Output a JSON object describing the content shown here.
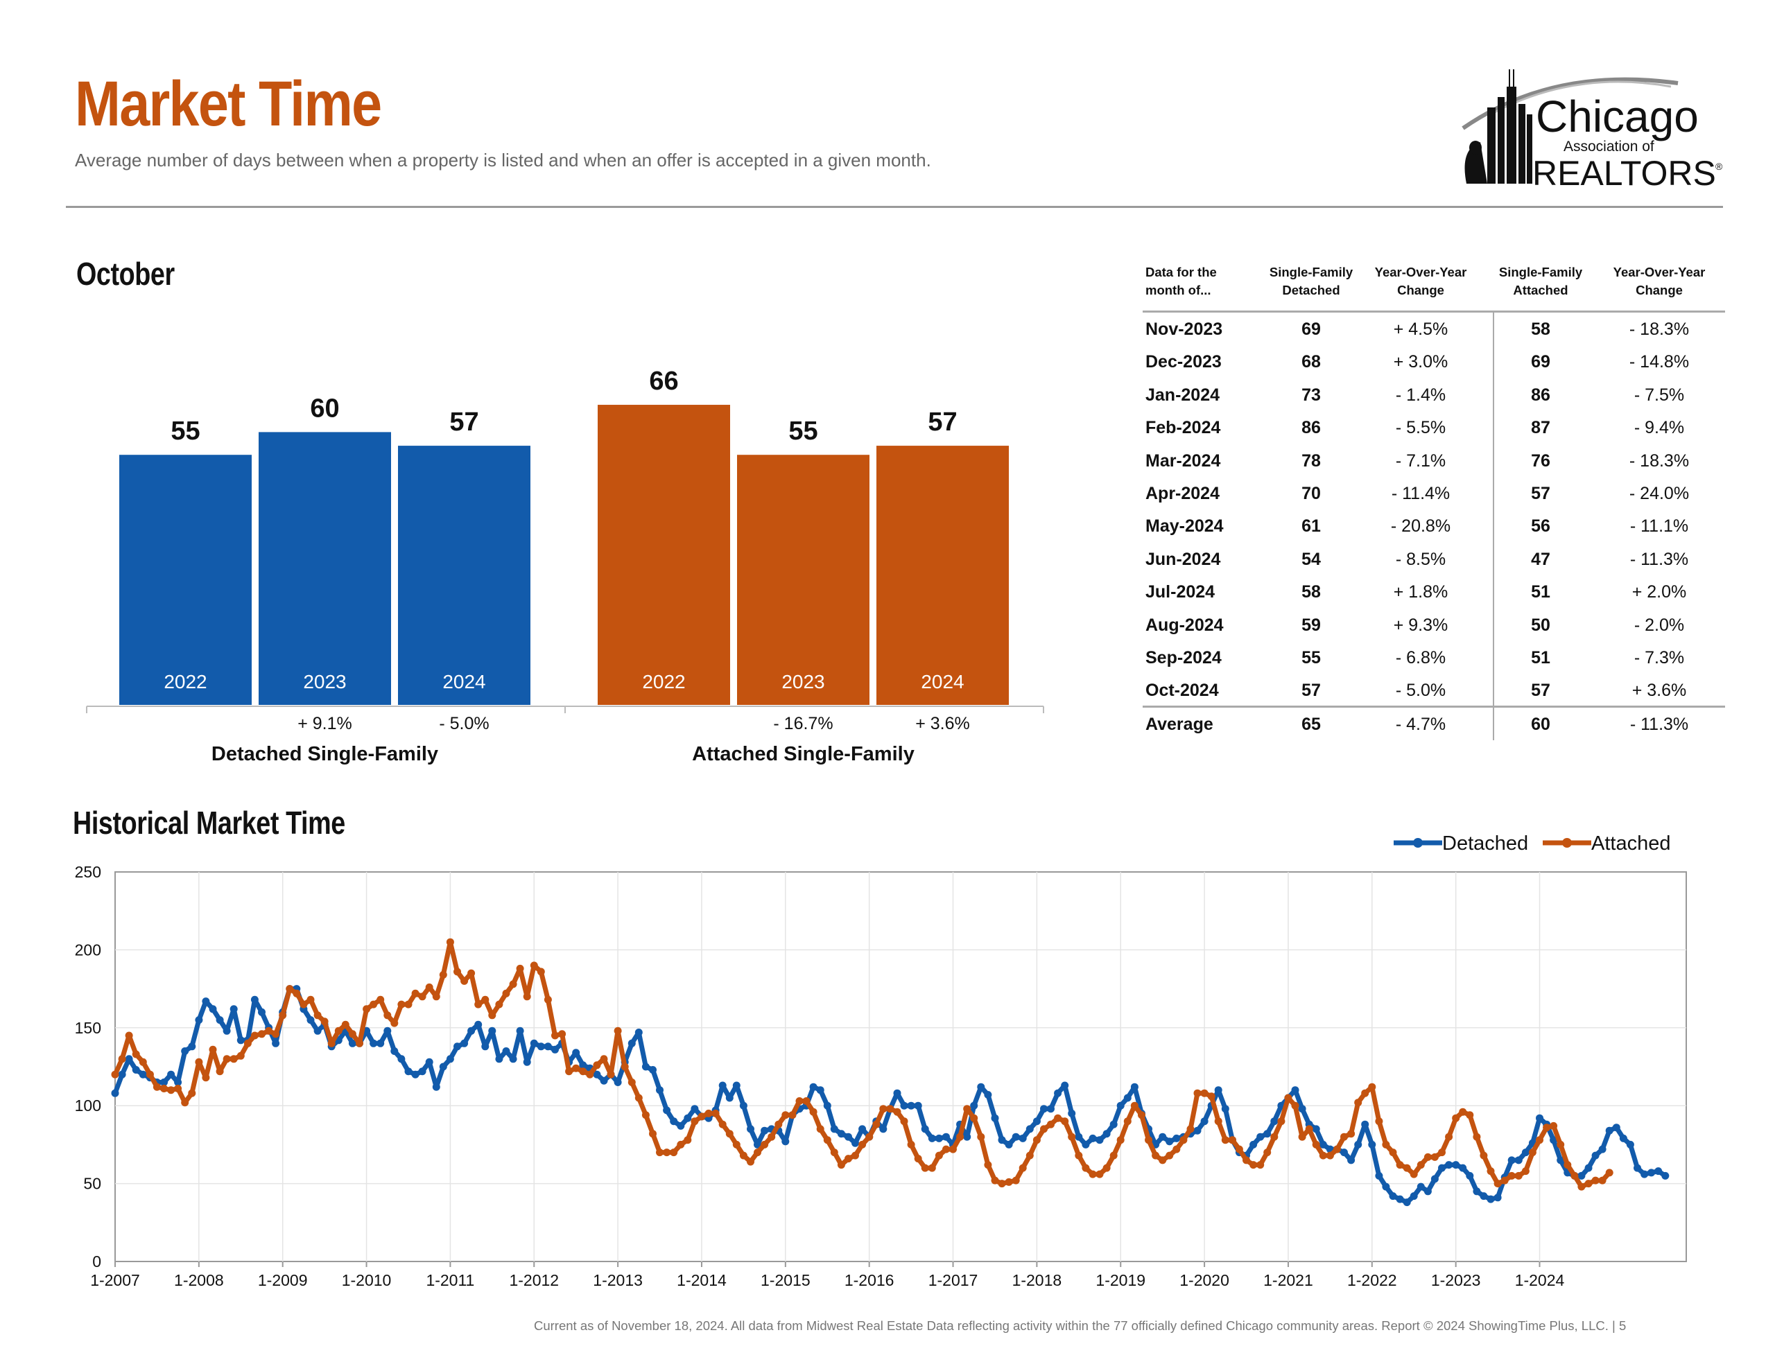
{
  "header": {
    "title": "Market Time",
    "subtitle": "Average number of days between when a property is listed and when an offer is accepted in a given month.",
    "logo": {
      "line1": "Chicago",
      "line2": "Association of",
      "line3": "REALTORS",
      "mark": "®"
    }
  },
  "october": {
    "title": "October"
  },
  "table": {
    "headers": [
      "Data for the month of...",
      "Single-Family Detached",
      "Year-Over-Year Change",
      "Single-Family Attached",
      "Year-Over-Year Change"
    ],
    "header_lines": [
      [
        "Data for the",
        "month of..."
      ],
      [
        "Single-Family",
        "Detached"
      ],
      [
        "Year-Over-Year",
        "Change"
      ],
      [
        "Single-Family",
        "Attached"
      ],
      [
        "Year-Over-Year",
        "Change"
      ]
    ],
    "rows": [
      [
        "Nov-2023",
        "69",
        "+ 4.5%",
        "58",
        "- 18.3%"
      ],
      [
        "Dec-2023",
        "68",
        "+ 3.0%",
        "69",
        "- 14.8%"
      ],
      [
        "Jan-2024",
        "73",
        "- 1.4%",
        "86",
        "- 7.5%"
      ],
      [
        "Feb-2024",
        "86",
        "- 5.5%",
        "87",
        "- 9.4%"
      ],
      [
        "Mar-2024",
        "78",
        "- 7.1%",
        "76",
        "- 18.3%"
      ],
      [
        "Apr-2024",
        "70",
        "- 11.4%",
        "57",
        "- 24.0%"
      ],
      [
        "May-2024",
        "61",
        "- 20.8%",
        "56",
        "- 11.1%"
      ],
      [
        "Jun-2024",
        "54",
        "- 8.5%",
        "47",
        "- 11.3%"
      ],
      [
        "Jul-2024",
        "58",
        "+ 1.8%",
        "51",
        "+ 2.0%"
      ],
      [
        "Aug-2024",
        "59",
        "+ 9.3%",
        "50",
        "- 2.0%"
      ],
      [
        "Sep-2024",
        "55",
        "- 6.8%",
        "51",
        "- 7.3%"
      ],
      [
        "Oct-2024",
        "57",
        "- 5.0%",
        "57",
        "+ 3.6%"
      ]
    ],
    "average": [
      "Average",
      "65",
      "- 4.7%",
      "60",
      "- 11.3%"
    ]
  },
  "historical": {
    "title": "Historical Market Time"
  },
  "footer": "Current as of November 18, 2024.  All data from Midwest Real Estate Data reflecting activity within the 77 officially defined Chicago community areas. Report © 2024 ShowingTime Plus, LLC.  |  5",
  "colors": {
    "detached": "#125bab",
    "attached": "#c4530f",
    "title": "#c4530f"
  },
  "chart_data": [
    {
      "type": "bar",
      "title": "October",
      "groups": [
        {
          "name": "Detached Single-Family",
          "color": "#125bab",
          "categories": [
            "2022",
            "2023",
            "2024"
          ],
          "values": [
            55,
            60,
            57
          ],
          "changes": [
            "",
            "+ 9.1%",
            "- 5.0%"
          ]
        },
        {
          "name": "Attached Single-Family",
          "color": "#c4530f",
          "categories": [
            "2022",
            "2023",
            "2024"
          ],
          "values": [
            66,
            55,
            57
          ],
          "changes": [
            "",
            "- 16.7%",
            "+ 3.6%"
          ]
        }
      ],
      "ylim": [
        0,
        75
      ]
    },
    {
      "type": "line",
      "title": "Historical Market Time",
      "x_start": "1-2007",
      "x_tick_labels": [
        "1-2007",
        "1-2008",
        "1-2009",
        "1-2010",
        "1-2011",
        "1-2012",
        "1-2013",
        "1-2014",
        "1-2015",
        "1-2016",
        "1-2017",
        "1-2018",
        "1-2019",
        "1-2020",
        "1-2021",
        "1-2022",
        "1-2023",
        "1-2024"
      ],
      "y_ticks": [
        0,
        50,
        100,
        150,
        200,
        250
      ],
      "ylim": [
        0,
        250
      ],
      "legend": "top-right",
      "grid": true,
      "series": [
        {
          "name": "Detached",
          "color": "#125bab",
          "values": [
            108,
            120,
            130,
            123,
            120,
            118,
            115,
            115,
            120,
            115,
            135,
            138,
            155,
            167,
            162,
            155,
            148,
            162,
            142,
            142,
            168,
            160,
            150,
            140,
            160,
            175,
            175,
            162,
            155,
            148,
            152,
            138,
            142,
            148,
            140,
            140,
            148,
            140,
            140,
            148,
            135,
            130,
            122,
            120,
            122,
            128,
            112,
            125,
            130,
            138,
            140,
            148,
            152,
            138,
            148,
            130,
            135,
            130,
            148,
            128,
            140,
            138,
            138,
            136,
            140,
            128,
            134,
            126,
            124,
            120,
            116,
            120,
            115,
            128,
            140,
            147,
            125,
            123,
            110,
            97,
            90,
            87,
            92,
            98,
            93,
            92,
            97,
            113,
            105,
            113,
            100,
            85,
            75,
            84,
            85,
            84,
            77,
            94,
            98,
            100,
            112,
            110,
            100,
            85,
            82,
            80,
            76,
            85,
            80,
            90,
            85,
            98,
            108,
            100,
            100,
            100,
            85,
            79,
            79,
            80,
            75,
            88,
            80,
            100,
            112,
            107,
            92,
            78,
            75,
            80,
            79,
            85,
            90,
            98,
            98,
            108,
            113,
            95,
            80,
            75,
            79,
            78,
            82,
            88,
            100,
            105,
            112,
            95,
            85,
            75,
            80,
            77,
            79,
            80,
            82,
            84,
            90,
            100,
            110,
            98,
            78,
            70,
            68,
            75,
            80,
            82,
            90,
            100,
            105,
            110,
            98,
            88,
            85,
            75,
            72,
            72,
            70,
            65,
            75,
            88,
            75,
            55,
            48,
            42,
            40,
            38,
            42,
            48,
            45,
            53,
            60,
            62,
            62,
            60,
            55,
            45,
            42,
            40,
            41,
            54,
            65,
            65,
            70,
            76,
            92,
            88,
            78,
            65,
            57,
            55,
            55,
            60,
            68,
            72,
            84,
            86,
            79,
            75,
            60,
            56,
            57,
            58,
            55
          ]
        },
        {
          "name": "Attached",
          "color": "#c4530f",
          "values": [
            120,
            130,
            145,
            133,
            128,
            120,
            112,
            111,
            110,
            111,
            102,
            108,
            128,
            118,
            136,
            122,
            130,
            130,
            132,
            140,
            145,
            146,
            148,
            146,
            158,
            175,
            172,
            165,
            168,
            158,
            154,
            140,
            148,
            152,
            146,
            140,
            162,
            165,
            168,
            158,
            153,
            165,
            165,
            172,
            170,
            176,
            170,
            184,
            205,
            186,
            180,
            185,
            165,
            168,
            158,
            165,
            172,
            178,
            188,
            170,
            190,
            186,
            168,
            145,
            146,
            122,
            124,
            122,
            120,
            126,
            130,
            120,
            148,
            125,
            115,
            105,
            94,
            82,
            70,
            70,
            70,
            75,
            78,
            90,
            93,
            95,
            95,
            88,
            82,
            75,
            68,
            64,
            70,
            75,
            80,
            88,
            94,
            94,
            103,
            103,
            96,
            85,
            78,
            70,
            62,
            66,
            68,
            75,
            80,
            88,
            98,
            98,
            96,
            90,
            75,
            66,
            60,
            60,
            68,
            72,
            72,
            80,
            98,
            92,
            80,
            62,
            52,
            50,
            51,
            52,
            60,
            68,
            78,
            85,
            88,
            92,
            90,
            80,
            68,
            60,
            56,
            56,
            60,
            68,
            78,
            90,
            100,
            94,
            78,
            68,
            65,
            68,
            72,
            78,
            85,
            108,
            108,
            106,
            90,
            78,
            78,
            72,
            65,
            62,
            62,
            70,
            80,
            90,
            105,
            100,
            80,
            85,
            75,
            68,
            68,
            72,
            80,
            82,
            102,
            108,
            112,
            90,
            75,
            70,
            62,
            60,
            56,
            62,
            67,
            67,
            70,
            80,
            92,
            96,
            94,
            80,
            68,
            58,
            50,
            52,
            55,
            55,
            58,
            70,
            78,
            86,
            87,
            75,
            62,
            55,
            48,
            50,
            52,
            52,
            57
          ]
        }
      ]
    }
  ]
}
